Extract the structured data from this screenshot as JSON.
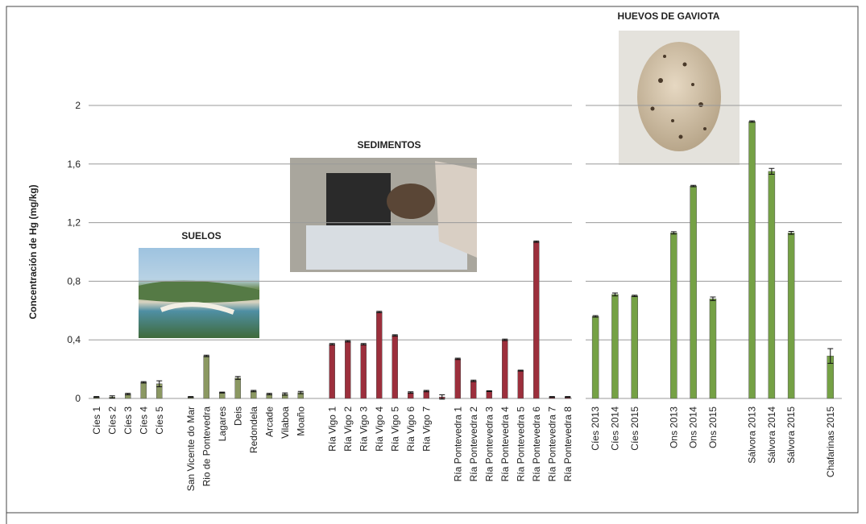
{
  "chart_data": [
    {
      "type": "bar",
      "y_label": "Concentración de Hg (mg/kg)",
      "annotations": [
        "SUELOS",
        "SEDIMENTOS"
      ],
      "categories": [
        "Cíes 1",
        "Cíes 2",
        "Cíes 3",
        "Cíes 4",
        "Cíes 5",
        null,
        "San Vicente do Mar",
        "Rio de Pontevedra",
        "Lagares",
        "Deis",
        "Redondela",
        "Arcade",
        "Vilaboa",
        "Moaño",
        null,
        "Ría Vigo 1",
        "Ría Vigo 2",
        "Ría Vigo 3",
        "Ría Vigo 4",
        "Ría Vigo 5",
        "Ría Vigo 6",
        "Ría Vigo 7",
        null,
        "Ría Pontevedra 1",
        "Ría Pontevedra 2",
        "Ría Pontevedra 3",
        "Ría Pontevedra 4",
        "Ría Pontevedra 5",
        "Ría Pontevedra 6",
        "Ría Pontevedra 7",
        "Ría Pontevedra 8"
      ],
      "values": [
        0.01,
        0.01,
        0.03,
        0.11,
        0.1,
        null,
        0.01,
        0.29,
        0.04,
        0.14,
        0.05,
        0.03,
        0.03,
        0.04,
        null,
        0.37,
        0.39,
        0.37,
        0.59,
        0.43,
        0.04,
        0.05,
        0.01,
        0.27,
        0.12,
        0.05,
        0.4,
        0.19,
        1.07,
        0.01,
        0.01
      ],
      "errors": [
        0.003,
        0.008,
        0.005,
        0.005,
        0.02,
        null,
        0.003,
        0.005,
        0.003,
        0.01,
        0.005,
        0.005,
        0.008,
        0.008,
        null,
        0.005,
        0.005,
        0.005,
        0.005,
        0.005,
        0.005,
        0.005,
        0.015,
        0.005,
        0.005,
        0.003,
        0.005,
        0.003,
        0.005,
        0.003,
        0.003
      ],
      "colors": [
        "#8b9862",
        "#8b9862",
        "#8b9862",
        "#8b9862",
        "#8b9862",
        null,
        "#8b9862",
        "#8b9862",
        "#8b9862",
        "#8b9862",
        "#8b9862",
        "#8b9862",
        "#8b9862",
        "#8b9862",
        null,
        "#9c2f3c",
        "#9c2f3c",
        "#9c2f3c",
        "#9c2f3c",
        "#9c2f3c",
        "#9c2f3c",
        "#9c2f3c",
        "#9c2f3c",
        "#9c2f3c",
        "#9c2f3c",
        "#9c2f3c",
        "#9c2f3c",
        "#9c2f3c",
        "#9c2f3c",
        "#9c2f3c",
        "#9c2f3c"
      ],
      "ylim": [
        0,
        2
      ],
      "yticks": [
        0,
        {
          "value": 0.4,
          "label": "0,4"
        },
        {
          "value": 0.8,
          "label": "0,8"
        },
        {
          "value": 1.2,
          "label": "1,2"
        },
        {
          "value": 1.6,
          "label": "1,6"
        },
        2
      ],
      "grid": true
    },
    {
      "type": "bar",
      "annotations": [
        "HUEVOS DE GAVIOTA"
      ],
      "categories": [
        "Cíes 2013",
        "Cíes 2014",
        "Cíes 2015",
        null,
        "Ons 2013",
        "Ons 2014",
        "Ons 2015",
        null,
        "Sálvora 2013",
        "Sálvora 2014",
        "Sálvora 2015",
        null,
        "Chafarinas 2015"
      ],
      "values": [
        0.56,
        0.71,
        0.7,
        null,
        1.13,
        1.45,
        0.68,
        null,
        1.89,
        1.55,
        1.13,
        null,
        0.29
      ],
      "errors": [
        0.005,
        0.01,
        0.005,
        null,
        0.008,
        0.005,
        0.012,
        null,
        0.005,
        0.02,
        0.01,
        null,
        0.05
      ],
      "colors": [
        "#75a145",
        "#75a145",
        "#75a145",
        null,
        "#75a145",
        "#75a145",
        "#75a145",
        null,
        "#75a145",
        "#75a145",
        "#75a145",
        null,
        "#75a145"
      ],
      "ylim": [
        0,
        2
      ],
      "yticks": [
        0,
        {
          "value": 0.4,
          "label": "0,4"
        },
        {
          "value": 0.8,
          "label": "0,8"
        },
        {
          "value": 1.2,
          "label": "1,2"
        },
        {
          "value": 1.6,
          "label": "1,6"
        },
        2
      ],
      "grid": true
    }
  ]
}
